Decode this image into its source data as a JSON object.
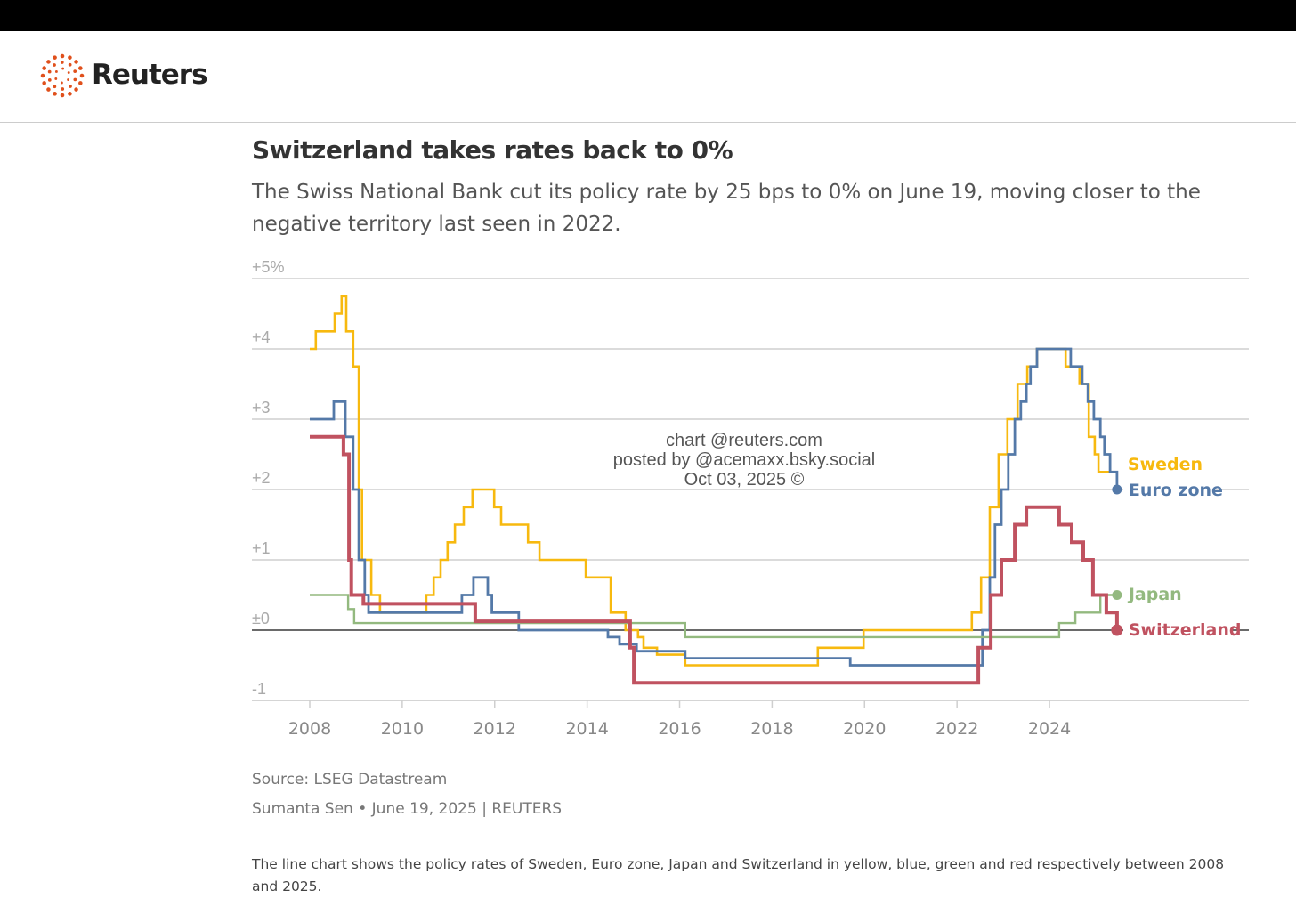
{
  "brand": {
    "name": "Reuters",
    "logo_color": "#e0501c"
  },
  "header": {
    "title": "Switzerland takes rates back to 0%",
    "subtitle": "The Swiss National Bank cut its policy rate by 25 bps to 0% on June 19, moving closer to the negative territory last seen in 2022."
  },
  "watermark": {
    "line1": "chart @reuters.com",
    "line2": "posted by @acemaxx.bsky.social",
    "line3": "Oct 03, 2025 ©"
  },
  "footer": {
    "source": "Source: LSEG Datastream",
    "byline": "Sumanta Sen • June 19, 2025 | REUTERS",
    "caption": "The line chart shows the policy rates of Sweden, Euro zone, Japan and Switzerland in yellow, blue, green and red respectively between 2008 and 2025."
  },
  "chart_data": {
    "type": "line",
    "step": true,
    "title": "Switzerland takes rates back to 0%",
    "xlabel": "",
    "ylabel": "",
    "xlim": [
      2006.75,
      2028.3
    ],
    "ylim": [
      -1,
      5
    ],
    "x_ticks": [
      2008,
      2010,
      2012,
      2014,
      2016,
      2018,
      2020,
      2022,
      2024
    ],
    "y_ticks": [
      {
        "v": 5,
        "label": "+5%"
      },
      {
        "v": 4,
        "label": "+4"
      },
      {
        "v": 3,
        "label": "+3"
      },
      {
        "v": 2,
        "label": "+2"
      },
      {
        "v": 1,
        "label": "+1"
      },
      {
        "v": 0,
        "label": "±0"
      },
      {
        "v": -1,
        "label": "-1"
      }
    ],
    "grid": true,
    "series": [
      {
        "name": "Sweden",
        "color": "#f7b90f",
        "end": 2025.48,
        "points": [
          [
            2008,
            4.0
          ],
          [
            2008.13,
            4.25
          ],
          [
            2008.54,
            4.5
          ],
          [
            2008.69,
            4.75
          ],
          [
            2008.79,
            4.25
          ],
          [
            2008.94,
            3.75
          ],
          [
            2009.06,
            2.0
          ],
          [
            2009.13,
            1.0
          ],
          [
            2009.33,
            0.5
          ],
          [
            2009.52,
            0.25
          ],
          [
            2010.52,
            0.5
          ],
          [
            2010.68,
            0.75
          ],
          [
            2010.83,
            1.0
          ],
          [
            2010.98,
            1.25
          ],
          [
            2011.14,
            1.5
          ],
          [
            2011.33,
            1.75
          ],
          [
            2011.52,
            2.0
          ],
          [
            2011.99,
            1.75
          ],
          [
            2012.14,
            1.5
          ],
          [
            2012.72,
            1.25
          ],
          [
            2012.97,
            1.0
          ],
          [
            2013.97,
            0.75
          ],
          [
            2014.51,
            0.25
          ],
          [
            2014.83,
            0.0
          ],
          [
            2015.1,
            -0.1
          ],
          [
            2015.22,
            -0.25
          ],
          [
            2015.51,
            -0.35
          ],
          [
            2016.12,
            -0.5
          ],
          [
            2018.99,
            -0.25
          ],
          [
            2019.98,
            0.0
          ],
          [
            2022.32,
            0.25
          ],
          [
            2022.52,
            0.75
          ],
          [
            2022.71,
            1.75
          ],
          [
            2022.9,
            2.5
          ],
          [
            2023.09,
            3.0
          ],
          [
            2023.31,
            3.5
          ],
          [
            2023.52,
            3.75
          ],
          [
            2023.73,
            4.0
          ],
          [
            2024.35,
            3.75
          ],
          [
            2024.65,
            3.5
          ],
          [
            2024.85,
            2.75
          ],
          [
            2024.98,
            2.5
          ],
          [
            2025.06,
            2.25
          ]
        ]
      },
      {
        "name": "Euro zone",
        "color": "#5479a8",
        "end": 2025.46,
        "points": [
          [
            2008,
            3.0
          ],
          [
            2008.52,
            3.25
          ],
          [
            2008.77,
            2.75
          ],
          [
            2008.94,
            2.0
          ],
          [
            2009.06,
            1.0
          ],
          [
            2009.19,
            0.5
          ],
          [
            2009.27,
            0.25
          ],
          [
            2011.29,
            0.5
          ],
          [
            2011.54,
            0.75
          ],
          [
            2011.85,
            0.5
          ],
          [
            2011.94,
            0.25
          ],
          [
            2012.52,
            0.0
          ],
          [
            2014.45,
            -0.1
          ],
          [
            2014.7,
            -0.2
          ],
          [
            2015.07,
            -0.3
          ],
          [
            2016.12,
            -0.4
          ],
          [
            2019.69,
            -0.5
          ],
          [
            2022.55,
            0.0
          ],
          [
            2022.71,
            0.75
          ],
          [
            2022.82,
            1.5
          ],
          [
            2022.96,
            2.0
          ],
          [
            2023.11,
            2.5
          ],
          [
            2023.25,
            3.0
          ],
          [
            2023.38,
            3.25
          ],
          [
            2023.5,
            3.5
          ],
          [
            2023.59,
            3.75
          ],
          [
            2023.73,
            4.0
          ],
          [
            2024.46,
            3.75
          ],
          [
            2024.71,
            3.5
          ],
          [
            2024.83,
            3.25
          ],
          [
            2024.96,
            3.0
          ],
          [
            2025.1,
            2.75
          ],
          [
            2025.19,
            2.5
          ],
          [
            2025.31,
            2.25
          ],
          [
            2025.46,
            2.0
          ]
        ]
      },
      {
        "name": "Japan",
        "color": "#93b97f",
        "end": 2025.46,
        "points": [
          [
            2008,
            0.5
          ],
          [
            2008.83,
            0.3
          ],
          [
            2008.96,
            0.1
          ],
          [
            2016.12,
            -0.1
          ],
          [
            2024.21,
            0.1
          ],
          [
            2024.56,
            0.25
          ],
          [
            2025.1,
            0.5
          ]
        ]
      },
      {
        "name": "Switzerland",
        "color": "#c05260",
        "end": 2025.46,
        "points": [
          [
            2008,
            2.75
          ],
          [
            2008.73,
            2.5
          ],
          [
            2008.85,
            1.0
          ],
          [
            2008.9,
            0.5
          ],
          [
            2009.16,
            0.375
          ],
          [
            2011.58,
            0.125
          ],
          [
            2014.93,
            -0.25
          ],
          [
            2015.01,
            -0.75
          ],
          [
            2022.46,
            -0.25
          ],
          [
            2022.73,
            0.5
          ],
          [
            2022.96,
            1.0
          ],
          [
            2023.25,
            1.5
          ],
          [
            2023.5,
            1.75
          ],
          [
            2024.21,
            1.5
          ],
          [
            2024.48,
            1.25
          ],
          [
            2024.73,
            1.0
          ],
          [
            2024.94,
            0.5
          ],
          [
            2025.23,
            0.25
          ],
          [
            2025.46,
            0.0
          ]
        ]
      }
    ],
    "legend": "inline-end-labels"
  }
}
